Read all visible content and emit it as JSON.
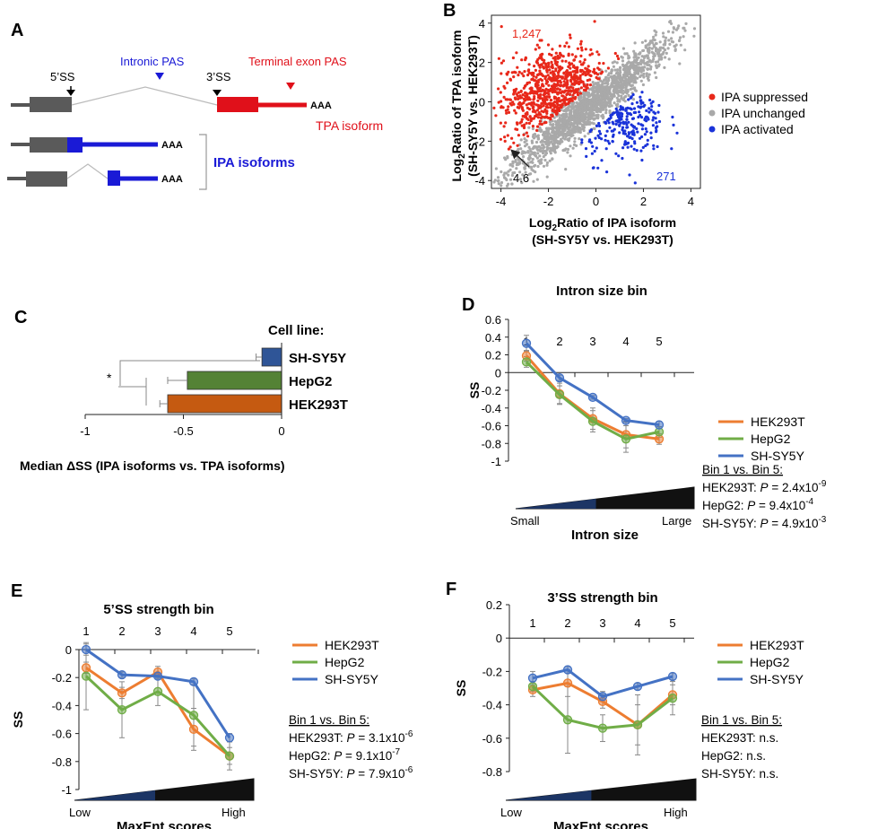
{
  "panels": {
    "a": {
      "letter": "A",
      "five_ss": "5’SS",
      "three_ss": "3’SS",
      "intronic_pas": "Intronic PAS",
      "terminal_pas": "Terminal exon PAS",
      "aaa": "AAA",
      "tpa_label": "TPA isoform",
      "ipa_label": "IPA isoforms",
      "colors": {
        "blue": "#1a1ad6",
        "red": "#e0101a",
        "gray": "#666666"
      }
    },
    "b": {
      "letter": "B",
      "count_suppressed": "1,247",
      "count_activated": "271",
      "arrow_value": "4.6",
      "legend": [
        {
          "label": "IPA suppressed",
          "color": "#e8281a"
        },
        {
          "label": "IPA unchanged",
          "color": "#a9a9a9"
        },
        {
          "label": "IPA activated",
          "color": "#1a33d9"
        }
      ]
    },
    "c": {
      "letter": "C",
      "title": "Cell line:",
      "star": "*"
    },
    "d": {
      "letter": "D"
    },
    "e": {
      "letter": "E"
    },
    "f": {
      "letter": "F"
    }
  },
  "chart_data": [
    {
      "id": "B",
      "type": "scatter",
      "xlabel_main": "Log",
      "xlabel_sub": "2",
      "xlabel_rest": "Ratio of IPA isoform",
      "xlabel2": "(SH-SY5Y vs. HEK293T)",
      "ylabel_main": "Log",
      "ylabel_sub": "2",
      "ylabel_rest": "Ratio of TPA isoform",
      "ylabel2": "(SH-SY5Y vs. HEK293T)",
      "xlim": [
        -4.4,
        4.4
      ],
      "ylim": [
        -4.4,
        4.4
      ],
      "x_ticks": [
        "-4",
        "-2",
        "0",
        "2",
        "4"
      ],
      "y_ticks": [
        "4",
        "2",
        "0",
        "-2",
        "-4"
      ],
      "groups": [
        {
          "name": "IPA suppressed",
          "count": 1247
        },
        {
          "name": "IPA unchanged"
        },
        {
          "name": "IPA activated",
          "count": 271
        }
      ]
    },
    {
      "id": "C",
      "type": "bar",
      "orientation": "horizontal",
      "categories": [
        "SH-SY5Y",
        "HepG2",
        "HEK293T"
      ],
      "values": [
        -0.1,
        -0.48,
        -0.58
      ],
      "errors": [
        0.03,
        0.1,
        0.04
      ],
      "colors": [
        "#2f5597",
        "#548235",
        "#c55a11"
      ],
      "xlim": [
        -1,
        0
      ],
      "x_ticks": [
        "-1",
        "-0.5",
        "0"
      ],
      "xlabel": "Median ΔSS (IPA isoforms vs. TPA isoforms)"
    },
    {
      "id": "D",
      "type": "line",
      "title": "Intron size bin",
      "bins": [
        "1",
        "2",
        "3",
        "4",
        "5"
      ],
      "ylabel": "SS",
      "ylim": [
        -1,
        0.6
      ],
      "y_ticks": [
        "0.6",
        "0.4",
        "0.2",
        "0",
        "-0.2",
        "-0.4",
        "-0.6",
        "-0.8",
        "-1"
      ],
      "xlabel": "Intron size",
      "low_label": "Small",
      "high_label": "Large",
      "series": [
        {
          "name": "HEK293T",
          "color": "#ed7d31",
          "values": [
            0.19,
            -0.24,
            -0.52,
            -0.7,
            -0.75
          ],
          "errors": [
            0.06,
            0.12,
            0.12,
            0.15,
            0.06
          ]
        },
        {
          "name": "HepG2",
          "color": "#70ad47",
          "values": [
            0.12,
            -0.25,
            -0.55,
            -0.75,
            -0.67
          ],
          "errors": [
            0.06,
            0.1,
            0.12,
            0.15,
            0.06
          ]
        },
        {
          "name": "SH-SY5Y",
          "color": "#4472c4",
          "values": [
            0.33,
            -0.06,
            -0.28,
            -0.54,
            -0.59
          ],
          "errors": [
            0.09,
            0.03,
            0.02,
            0.02,
            0.04
          ]
        }
      ],
      "stats_title": "Bin 1 vs. Bin 5:",
      "stats": [
        {
          "name": "HEK293T",
          "p": "2.4x10",
          "exp": "-9"
        },
        {
          "name": "HepG2",
          "p": "9.4x10",
          "exp": "-4"
        },
        {
          "name": "SH-SY5Y",
          "p": "4.9x10",
          "exp": "-3"
        }
      ]
    },
    {
      "id": "E",
      "type": "line",
      "title": "5’SS strength bin",
      "bins": [
        "1",
        "2",
        "3",
        "4",
        "5"
      ],
      "ylabel": "SS",
      "ylim": [
        -1,
        0
      ],
      "y_ticks": [
        "0",
        "-0.2",
        "-0.4",
        "-0.6",
        "-0.8",
        "-1"
      ],
      "xlabel": "MaxEnt scores",
      "low_label": "Low",
      "high_label": "High",
      "series": [
        {
          "name": "HEK293T",
          "color": "#ed7d31",
          "values": [
            -0.13,
            -0.31,
            -0.16,
            -0.57,
            -0.76
          ],
          "errors": [
            0.04,
            0.04,
            0.04,
            0.15,
            0.06
          ]
        },
        {
          "name": "HepG2",
          "color": "#70ad47",
          "values": [
            -0.19,
            -0.43,
            -0.3,
            -0.47,
            -0.76
          ],
          "errors": [
            0.24,
            0.2,
            0.1,
            0.22,
            0.1
          ]
        },
        {
          "name": "SH-SY5Y",
          "color": "#4472c4",
          "values": [
            0.0,
            -0.18,
            -0.19,
            -0.23,
            -0.63
          ],
          "errors": [
            0.04,
            0.02,
            0.02,
            0.02,
            0.03
          ]
        }
      ],
      "stats_title": "Bin 1 vs. Bin 5:",
      "stats": [
        {
          "name": "HEK293T",
          "p": "3.1x10",
          "exp": "-6"
        },
        {
          "name": "HepG2",
          "p": "9.1x10",
          "exp": "-7"
        },
        {
          "name": "SH-SY5Y",
          "p": "7.9x10",
          "exp": "-6"
        }
      ]
    },
    {
      "id": "F",
      "type": "line",
      "title": "3’SS strength bin",
      "bins": [
        "1",
        "2",
        "3",
        "4",
        "5"
      ],
      "ylabel": "SS",
      "ylim": [
        -0.8,
        0.2
      ],
      "y_ticks": [
        "0.2",
        "0",
        "-0.2",
        "-0.4",
        "-0.6",
        "-0.8"
      ],
      "xlabel": "MaxEnt scores",
      "low_label": "Low",
      "high_label": "High",
      "series": [
        {
          "name": "HEK293T",
          "color": "#ed7d31",
          "values": [
            -0.31,
            -0.27,
            -0.38,
            -0.52,
            -0.34
          ],
          "errors": [
            0.04,
            0.08,
            0.04,
            0.12,
            0.06
          ]
        },
        {
          "name": "HepG2",
          "color": "#70ad47",
          "values": [
            -0.29,
            -0.49,
            -0.54,
            -0.52,
            -0.36
          ],
          "errors": [
            0.03,
            0.2,
            0.08,
            0.18,
            0.1
          ]
        },
        {
          "name": "SH-SY5Y",
          "color": "#4472c4",
          "values": [
            -0.24,
            -0.19,
            -0.35,
            -0.29,
            -0.23
          ],
          "errors": [
            0.04,
            0.02,
            0.03,
            0.02,
            0.02
          ]
        }
      ],
      "stats_title": "Bin 1 vs. Bin 5:",
      "stats": [
        {
          "name": "HEK293T",
          "text": "n.s."
        },
        {
          "name": "HepG2",
          "text": "n.s."
        },
        {
          "name": "SH-SY5Y",
          "text": "n.s."
        }
      ]
    }
  ]
}
